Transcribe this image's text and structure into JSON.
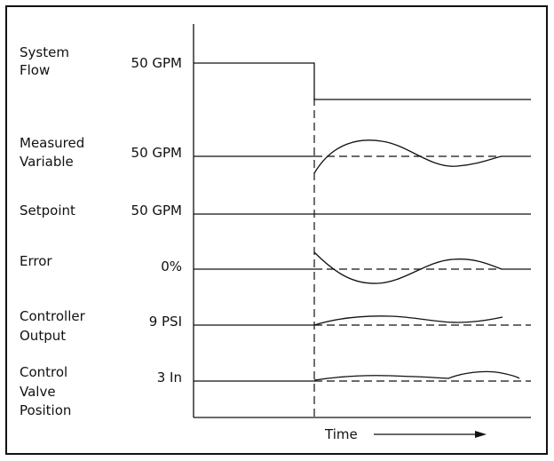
{
  "rows": [
    {
      "id": "system-flow",
      "label_lines": [
        "System",
        "Flow"
      ],
      "value": "50 GPM"
    },
    {
      "id": "measured-variable",
      "label_lines": [
        "Measured",
        "Variable"
      ],
      "value": "50 GPM"
    },
    {
      "id": "setpoint",
      "label_lines": [
        "Setpoint"
      ],
      "value": "50 GPM"
    },
    {
      "id": "error",
      "label_lines": [
        "Error"
      ],
      "value": "0%"
    },
    {
      "id": "controller-output",
      "label_lines": [
        "Controller",
        "Output"
      ],
      "value": "9 PSI"
    },
    {
      "id": "control-valve-position",
      "label_lines": [
        "Control",
        "Valve",
        "Position"
      ],
      "value": "3 In"
    }
  ],
  "time_axis_label": "Time"
}
